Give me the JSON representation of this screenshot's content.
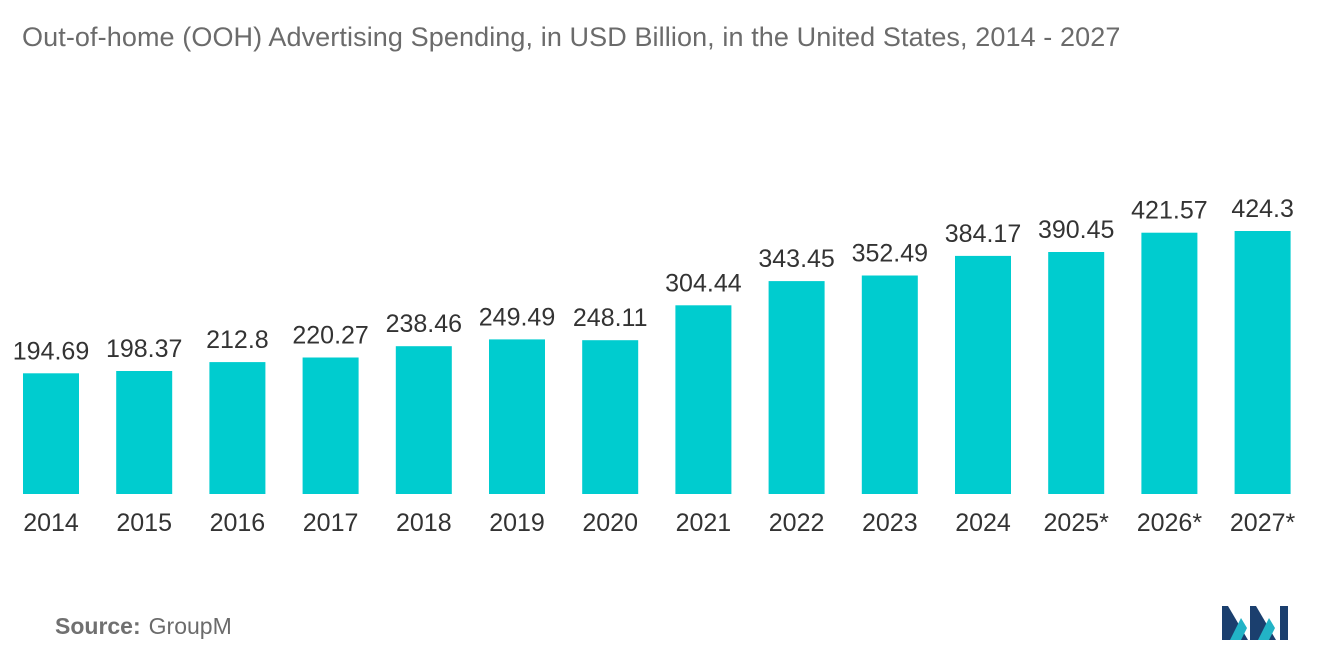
{
  "chart_data": {
    "type": "bar",
    "title": "Out-of-home (OOH) Advertising Spending, in USD Billion, in the United States, 2014 - 2027",
    "categories": [
      "2014",
      "2015",
      "2016",
      "2017",
      "2018",
      "2019",
      "2020",
      "2021",
      "2022",
      "2023",
      "2024",
      "2025*",
      "2026*",
      "2027*"
    ],
    "values": [
      194.69,
      198.37,
      212.8,
      220.27,
      238.46,
      249.49,
      248.11,
      304.44,
      343.45,
      352.49,
      384.17,
      390.45,
      421.57,
      424.3
    ],
    "value_labels": [
      "194.69",
      "198.37",
      "212.8",
      "220.27",
      "238.46",
      "249.49",
      "248.11",
      "304.44",
      "343.45",
      "352.49",
      "384.17",
      "390.45",
      "421.57",
      "424.3"
    ],
    "xlabel": "",
    "ylabel": "",
    "ylim": [
      0,
      530
    ],
    "grid": false,
    "legend": "none",
    "bar_color": "#00cccf",
    "label_color": "#333333",
    "tick_color": "#333333"
  },
  "source": {
    "label": "Source:",
    "value": "GroupM"
  },
  "colors": {
    "title": "#6b6b6b",
    "logo_dark": "#1b3f6e",
    "logo_teal": "#22b3c6"
  }
}
